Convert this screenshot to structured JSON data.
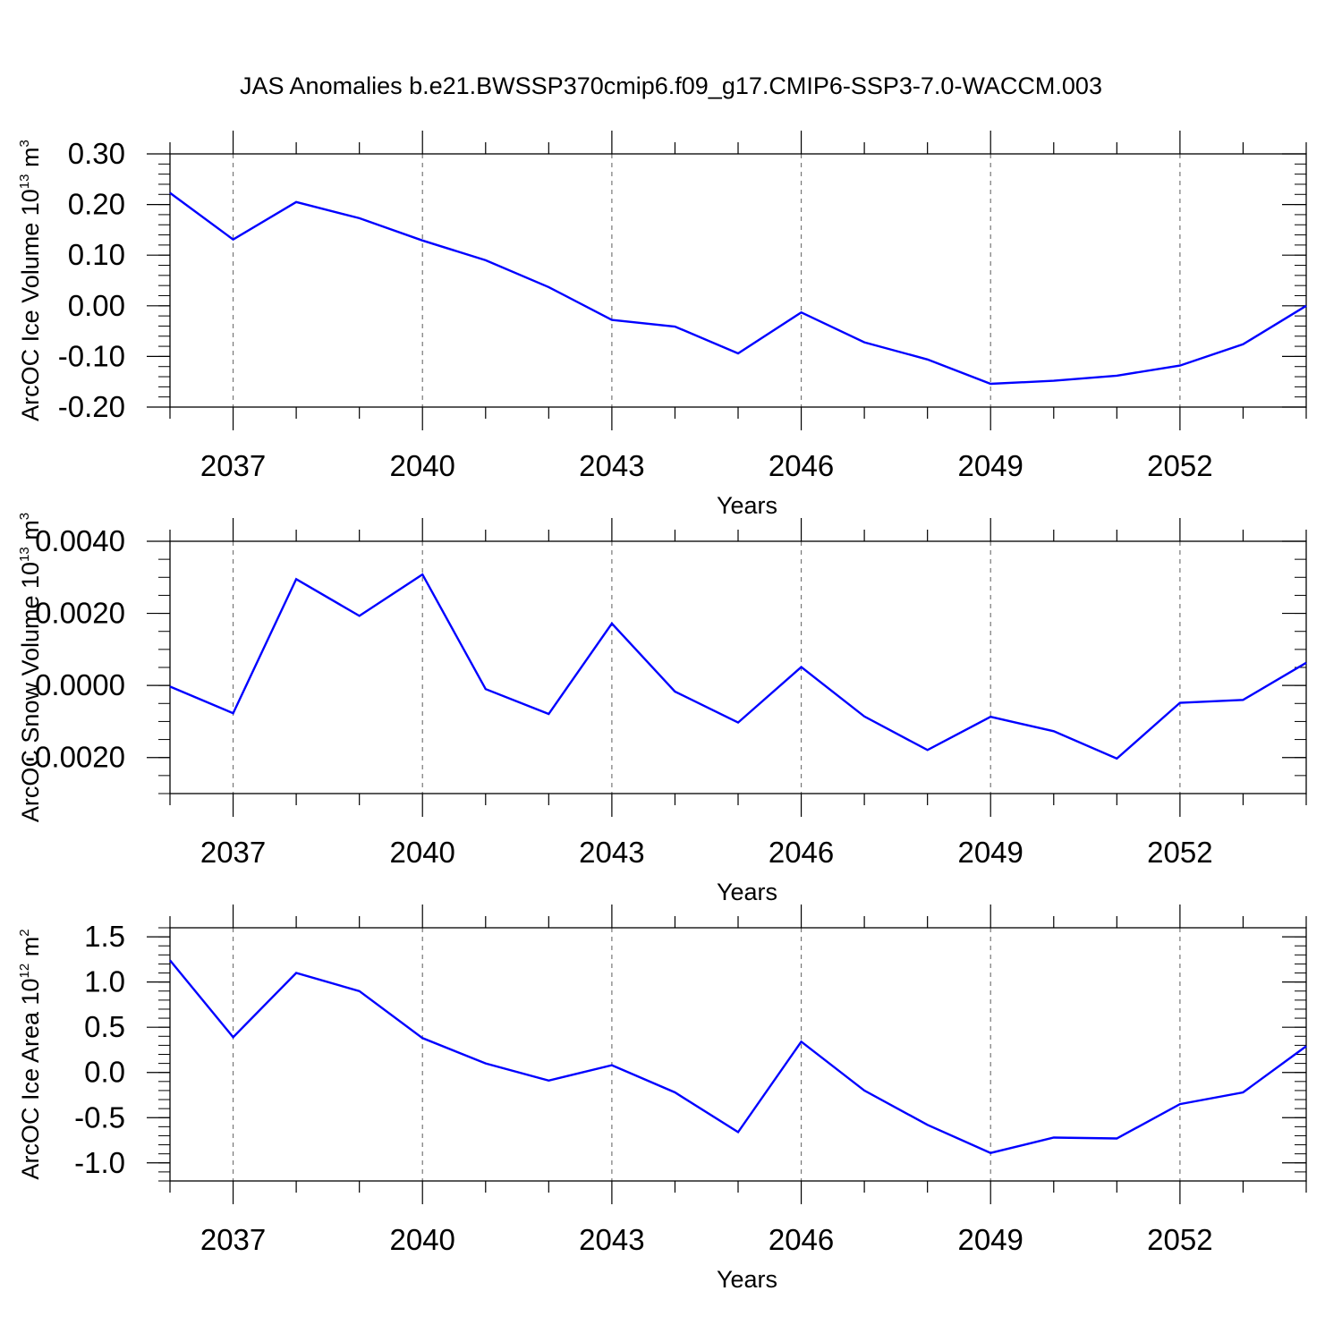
{
  "title": "JAS Anomalies b.e21.BWSSP370cmip6.f09_g17.CMIP6-SSP3-7.0-WACCM.003",
  "colors": {
    "line": "#0000ff",
    "axis": "#000000",
    "grid": "#777777"
  },
  "chart_data": [
    {
      "type": "line",
      "ylabel_main": "ArcOC Ice Volume 10",
      "ylabel_exp": "13",
      "ylabel_unit": " m",
      "ylabel_unit_exp": "3",
      "xlabel": "Years",
      "xlim": [
        2036,
        2054
      ],
      "ylim": [
        -0.2,
        0.3
      ],
      "x_ticks": [
        2037,
        2040,
        2043,
        2046,
        2049,
        2052
      ],
      "x_tick_labels": [
        "2037",
        "2040",
        "2043",
        "2046",
        "2049",
        "2052"
      ],
      "y_ticks": [
        -0.2,
        -0.1,
        0.0,
        0.1,
        0.2,
        0.3
      ],
      "y_tick_labels": [
        "-0.20",
        "-0.10",
        "0.00",
        "0.10",
        "0.20",
        "0.30"
      ],
      "y_minor_step": 0.02,
      "grid": "vertical dashed at major x ticks",
      "series": [
        {
          "name": "ArcOC Ice Volume",
          "x": [
            2036,
            2037,
            2038,
            2039,
            2040,
            2041,
            2042,
            2043,
            2044,
            2045,
            2046,
            2047,
            2048,
            2049,
            2050,
            2051,
            2052,
            2053,
            2054
          ],
          "values": [
            0.223,
            0.131,
            0.205,
            0.173,
            0.129,
            0.09,
            0.037,
            -0.028,
            -0.041,
            -0.094,
            -0.013,
            -0.072,
            -0.106,
            -0.154,
            -0.148,
            -0.138,
            -0.118,
            -0.076,
            0.0
          ]
        }
      ]
    },
    {
      "type": "line",
      "ylabel_main": "ArcOC Snow Volume 10",
      "ylabel_exp": "13",
      "ylabel_unit": " m",
      "ylabel_unit_exp": "3",
      "xlabel": "Years",
      "xlim": [
        2036,
        2054
      ],
      "ylim": [
        -0.003,
        0.004
      ],
      "x_ticks": [
        2037,
        2040,
        2043,
        2046,
        2049,
        2052
      ],
      "x_tick_labels": [
        "2037",
        "2040",
        "2043",
        "2046",
        "2049",
        "2052"
      ],
      "y_ticks": [
        -0.002,
        0.0,
        0.002,
        0.004
      ],
      "y_tick_labels": [
        "-0.0020",
        "0.0000",
        "0.0020",
        "0.0040"
      ],
      "y_minor_step": 0.0005,
      "grid": "vertical dashed at major x ticks",
      "series": [
        {
          "name": "ArcOC Snow Volume",
          "x": [
            2036,
            2037,
            2038,
            2039,
            2040,
            2041,
            2042,
            2043,
            2044,
            2045,
            2046,
            2047,
            2048,
            2049,
            2050,
            2051,
            2052,
            2053,
            2054
          ],
          "values": [
            -3e-05,
            -0.00077,
            0.00295,
            0.00193,
            0.00308,
            -0.0001,
            -0.00079,
            0.00172,
            -0.00017,
            -0.00103,
            0.00051,
            -0.00086,
            -0.00179,
            -0.00087,
            -0.00127,
            -0.00203,
            -0.00048,
            -0.0004,
            0.00063
          ]
        }
      ]
    },
    {
      "type": "line",
      "ylabel_main": "ArcOC Ice Area 10",
      "ylabel_exp": "12",
      "ylabel_unit": " m",
      "ylabel_unit_exp": "2",
      "xlabel": "Years",
      "xlim": [
        2036,
        2054
      ],
      "ylim": [
        -1.2,
        1.6
      ],
      "x_ticks": [
        2037,
        2040,
        2043,
        2046,
        2049,
        2052
      ],
      "x_tick_labels": [
        "2037",
        "2040",
        "2043",
        "2046",
        "2049",
        "2052"
      ],
      "y_ticks": [
        -1.0,
        -0.5,
        0.0,
        0.5,
        1.0,
        1.5
      ],
      "y_tick_labels": [
        "-1.0",
        "-0.5",
        "0.0",
        "0.5",
        "1.0",
        "1.5"
      ],
      "y_minor_step": 0.1,
      "grid": "vertical dashed at major x ticks",
      "series": [
        {
          "name": "ArcOC Ice Area",
          "x": [
            2036,
            2037,
            2038,
            2039,
            2040,
            2041,
            2042,
            2043,
            2044,
            2045,
            2046,
            2047,
            2048,
            2049,
            2050,
            2051,
            2052,
            2053,
            2054
          ],
          "values": [
            1.24,
            0.39,
            1.1,
            0.9,
            0.38,
            0.1,
            -0.09,
            0.08,
            -0.22,
            -0.66,
            0.34,
            -0.2,
            -0.58,
            -0.89,
            -0.72,
            -0.73,
            -0.35,
            -0.22,
            0.29
          ]
        }
      ]
    }
  ]
}
